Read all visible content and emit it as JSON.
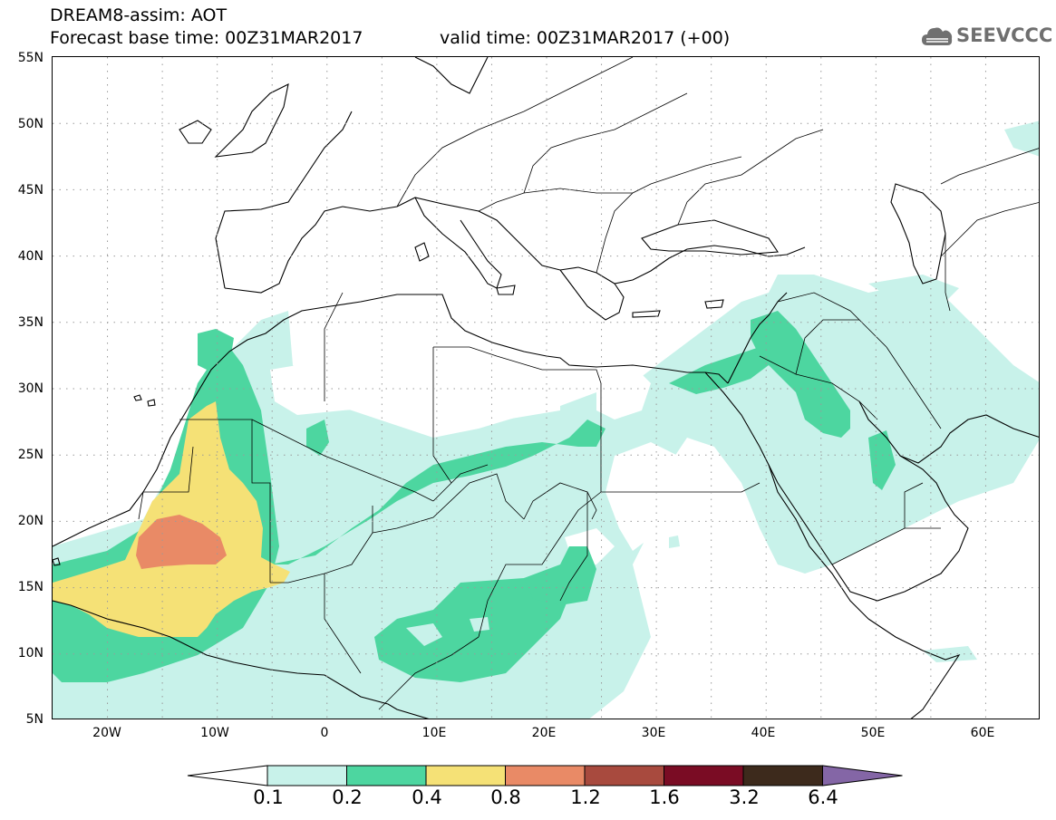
{
  "header": {
    "title_line1": "DREAM8-assim: AOT",
    "title_line2": "Forecast base time: 00Z31MAR2017",
    "valid_time": "valid time: 00Z31MAR2017 (+00)",
    "logo_text": "SEEVCCC"
  },
  "map": {
    "lat_labels": [
      "55N",
      "50N",
      "45N",
      "40N",
      "35N",
      "30N",
      "25N",
      "20N",
      "15N",
      "10N",
      "5N"
    ],
    "lon_labels": [
      "20W",
      "10W",
      "0",
      "10E",
      "20E",
      "30E",
      "40E",
      "50E",
      "60E"
    ],
    "extent": {
      "lon": [
        -25,
        65
      ],
      "lat": [
        5,
        55
      ]
    }
  },
  "colorbar": {
    "labels": [
      "0.1",
      "0.2",
      "0.4",
      "0.8",
      "1.2",
      "1.6",
      "3.2",
      "6.4"
    ],
    "colors": [
      "#ffffff",
      "#c8f2ea",
      "#4dd6a0",
      "#f5e176",
      "#e98a66",
      "#a84a3e",
      "#7a0c24",
      "#3d2a1c",
      "#8466a6"
    ]
  }
}
